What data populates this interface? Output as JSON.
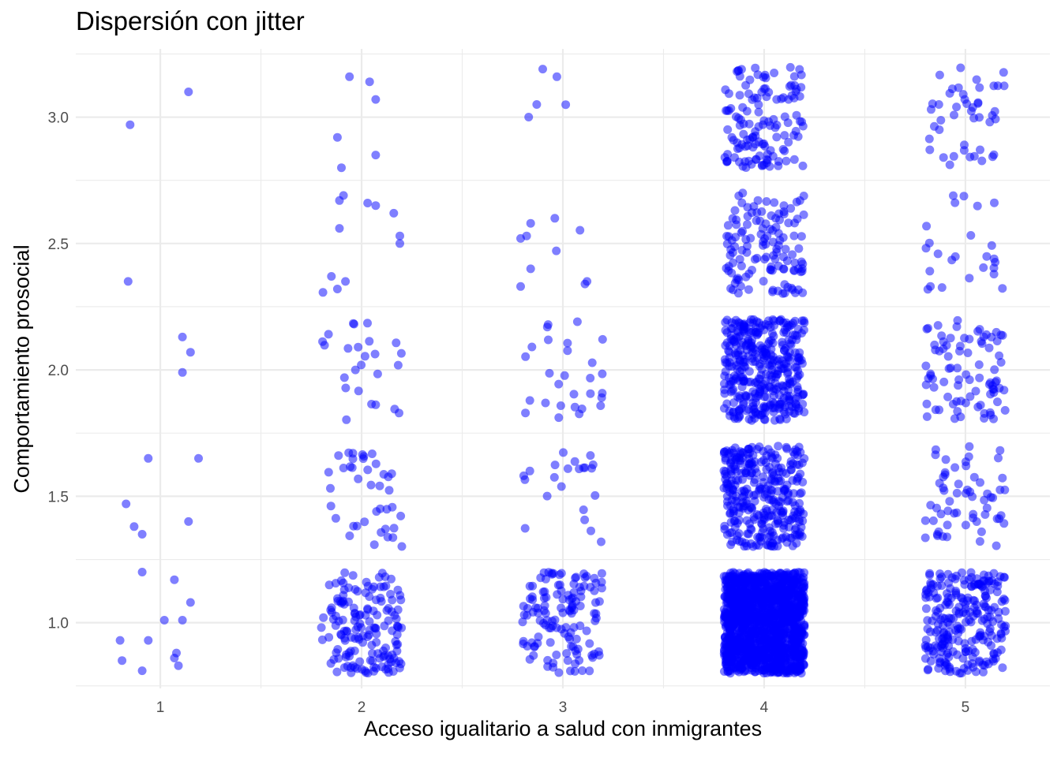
{
  "chart_data": {
    "type": "scatter",
    "title": "Dispersión con jitter",
    "xlabel": "Acceso igualitario a salud con inmigrantes",
    "ylabel": "Comportamiento prosocial",
    "x_categories": [
      1,
      2,
      3,
      4,
      5
    ],
    "xlim": [
      0.58,
      5.42
    ],
    "ylim": [
      0.74,
      3.27
    ],
    "y_ticks": [
      1.0,
      1.5,
      2.0,
      2.5,
      3.0
    ],
    "y_tick_labels": [
      "1.0",
      "1.5",
      "2.0",
      "2.5",
      "3.0"
    ],
    "grid": true,
    "jitter": {
      "width": 0.2,
      "height": 0.2
    },
    "point_color": "#0000FF",
    "point_alpha": 0.5,
    "series": [
      {
        "x_value": 1,
        "points": [
          [
            0.85,
            2.97
          ],
          [
            1.14,
            3.1
          ],
          [
            0.84,
            2.35
          ],
          [
            1.11,
            2.13
          ],
          [
            1.15,
            2.07
          ],
          [
            1.11,
            1.99
          ],
          [
            0.94,
            1.65
          ],
          [
            1.19,
            1.65
          ],
          [
            0.83,
            1.47
          ],
          [
            0.87,
            1.38
          ],
          [
            0.91,
            1.35
          ],
          [
            1.14,
            1.4
          ],
          [
            0.91,
            1.2
          ],
          [
            1.07,
            1.17
          ],
          [
            1.15,
            1.08
          ],
          [
            1.02,
            1.01
          ],
          [
            1.11,
            1.01
          ],
          [
            0.8,
            0.93
          ],
          [
            0.94,
            0.93
          ],
          [
            1.08,
            0.88
          ],
          [
            1.07,
            0.86
          ],
          [
            0.81,
            0.85
          ],
          [
            1.09,
            0.83
          ],
          [
            0.91,
            0.81
          ]
        ]
      },
      {
        "x_value": 2,
        "n_groups": [
          {
            "y_center": 3.0,
            "y_range": [
              2.8,
              3.2
            ],
            "n": 6
          },
          {
            "y_center": 2.5,
            "y_range": [
              2.3,
              2.7
            ],
            "n": 12
          },
          {
            "y_center": 2.0,
            "y_range": [
              1.8,
              2.2
            ],
            "n": 25
          },
          {
            "y_center": 1.5,
            "y_range": [
              1.3,
              1.7
            ],
            "n": 40
          },
          {
            "y_center": 1.0,
            "y_range": [
              0.8,
              1.2
            ],
            "n": 160
          }
        ],
        "points": [
          [
            1.94,
            3.16
          ],
          [
            2.04,
            3.14
          ],
          [
            2.07,
            3.07
          ],
          [
            1.88,
            2.92
          ],
          [
            2.07,
            2.85
          ],
          [
            1.9,
            2.8
          ],
          [
            1.91,
            2.69
          ],
          [
            1.89,
            2.67
          ],
          [
            2.03,
            2.66
          ],
          [
            2.07,
            2.65
          ],
          [
            2.16,
            2.62
          ],
          [
            1.89,
            2.56
          ],
          [
            2.19,
            2.53
          ],
          [
            2.19,
            2.5
          ],
          [
            1.85,
            2.37
          ],
          [
            1.92,
            2.35
          ],
          [
            1.88,
            2.32
          ]
        ]
      },
      {
        "x_value": 3,
        "n_groups": [
          {
            "y_center": 3.0,
            "y_range": [
              2.8,
              3.2
            ],
            "n": 5
          },
          {
            "y_center": 2.5,
            "y_range": [
              2.3,
              2.7
            ],
            "n": 10
          },
          {
            "y_center": 2.0,
            "y_range": [
              1.8,
              2.2
            ],
            "n": 28
          },
          {
            "y_center": 1.5,
            "y_range": [
              1.3,
              1.7
            ],
            "n": 22
          },
          {
            "y_center": 1.0,
            "y_range": [
              0.8,
              1.2
            ],
            "n": 130
          }
        ],
        "points": [
          [
            2.9,
            3.19
          ],
          [
            2.97,
            3.16
          ],
          [
            2.87,
            3.05
          ],
          [
            2.83,
            3.0
          ],
          [
            2.96,
            2.6
          ],
          [
            2.84,
            2.58
          ],
          [
            2.82,
            2.53
          ],
          [
            2.79,
            2.52
          ],
          [
            2.84,
            2.4
          ],
          [
            2.79,
            2.33
          ],
          [
            3.11,
            2.34
          ],
          [
            3.12,
            2.35
          ]
        ]
      },
      {
        "x_value": 4,
        "n_groups": [
          {
            "y_center": 3.0,
            "y_range": [
              2.8,
              3.2
            ],
            "n": 130
          },
          {
            "y_center": 2.5,
            "y_range": [
              2.3,
              2.7
            ],
            "n": 130
          },
          {
            "y_center": 2.0,
            "y_range": [
              1.8,
              2.2
            ],
            "n": 380
          },
          {
            "y_center": 1.5,
            "y_range": [
              1.3,
              1.7
            ],
            "n": 330
          },
          {
            "y_center": 1.0,
            "y_range": [
              0.8,
              1.2
            ],
            "n": 1500
          }
        ],
        "points": []
      },
      {
        "x_value": 5,
        "n_groups": [
          {
            "y_center": 3.0,
            "y_range": [
              2.8,
              3.2
            ],
            "n": 45
          },
          {
            "y_center": 2.5,
            "y_range": [
              2.3,
              2.7
            ],
            "n": 25
          },
          {
            "y_center": 2.0,
            "y_range": [
              1.8,
              2.2
            ],
            "n": 85
          },
          {
            "y_center": 1.5,
            "y_range": [
              1.3,
              1.7
            ],
            "n": 60
          },
          {
            "y_center": 1.0,
            "y_range": [
              0.8,
              1.2
            ],
            "n": 250
          }
        ],
        "points": []
      }
    ]
  }
}
